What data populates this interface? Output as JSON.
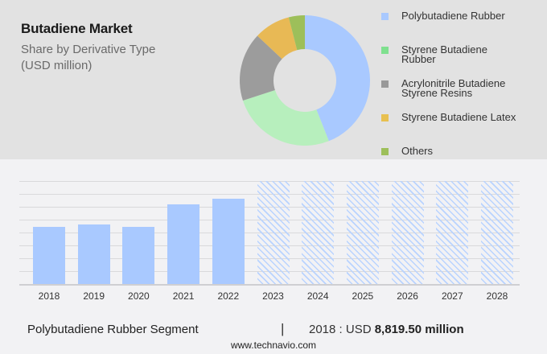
{
  "header": {
    "title": "Butadiene Market",
    "subtitle_line1": "Share by Derivative Type",
    "subtitle_line2": "(USD million)"
  },
  "legend": [
    {
      "label": "Polybutadiene Rubber",
      "color": "#a9c9ff"
    },
    {
      "label": "Styrene Butadiene Rubber",
      "color": "#7fe08f"
    },
    {
      "label": "Acrylonitrile Butadiene Styrene Resins",
      "color": "#999999"
    },
    {
      "label": "Styrene Butadiene Latex",
      "color": "#e8c050"
    },
    {
      "label": "Others",
      "color": "#9dbf5a"
    }
  ],
  "footer": {
    "segment": "Polybutadiene Rubber Segment",
    "separator": "|",
    "year_prefix": "2018 : USD ",
    "value": "8,819.50 million",
    "url": "www.technavio.com"
  },
  "chart_data": [
    {
      "type": "pie",
      "title": "Butadiene Market - Share by Derivative Type (USD million)",
      "categories": [
        "Polybutadiene Rubber",
        "Styrene Butadiene Rubber",
        "Acrylonitrile Butadiene Styrene Resins",
        "Styrene Butadiene Latex",
        "Others"
      ],
      "values": [
        44,
        26,
        17,
        9,
        4
      ],
      "unit": "% share (estimated)",
      "colors": [
        "#a9c9ff",
        "#b7efbd",
        "#9c9c9c",
        "#e8b955",
        "#9dbf5a"
      ],
      "donut": true,
      "legend_position": "right"
    },
    {
      "type": "bar",
      "title": "Polybutadiene Rubber Segment",
      "categories": [
        "2018",
        "2019",
        "2020",
        "2021",
        "2022",
        "2023",
        "2024",
        "2025",
        "2026",
        "2027",
        "2028"
      ],
      "values": [
        8819.5,
        9250,
        8820,
        12300,
        13170,
        null,
        null,
        null,
        null,
        null,
        null
      ],
      "forecast_years": [
        "2023",
        "2024",
        "2025",
        "2026",
        "2027",
        "2028"
      ],
      "xlabel": "",
      "ylabel": "USD million",
      "grid": true,
      "annotation": "2018 : USD 8,819.50 million",
      "bar_color": "#a9c9ff"
    }
  ]
}
